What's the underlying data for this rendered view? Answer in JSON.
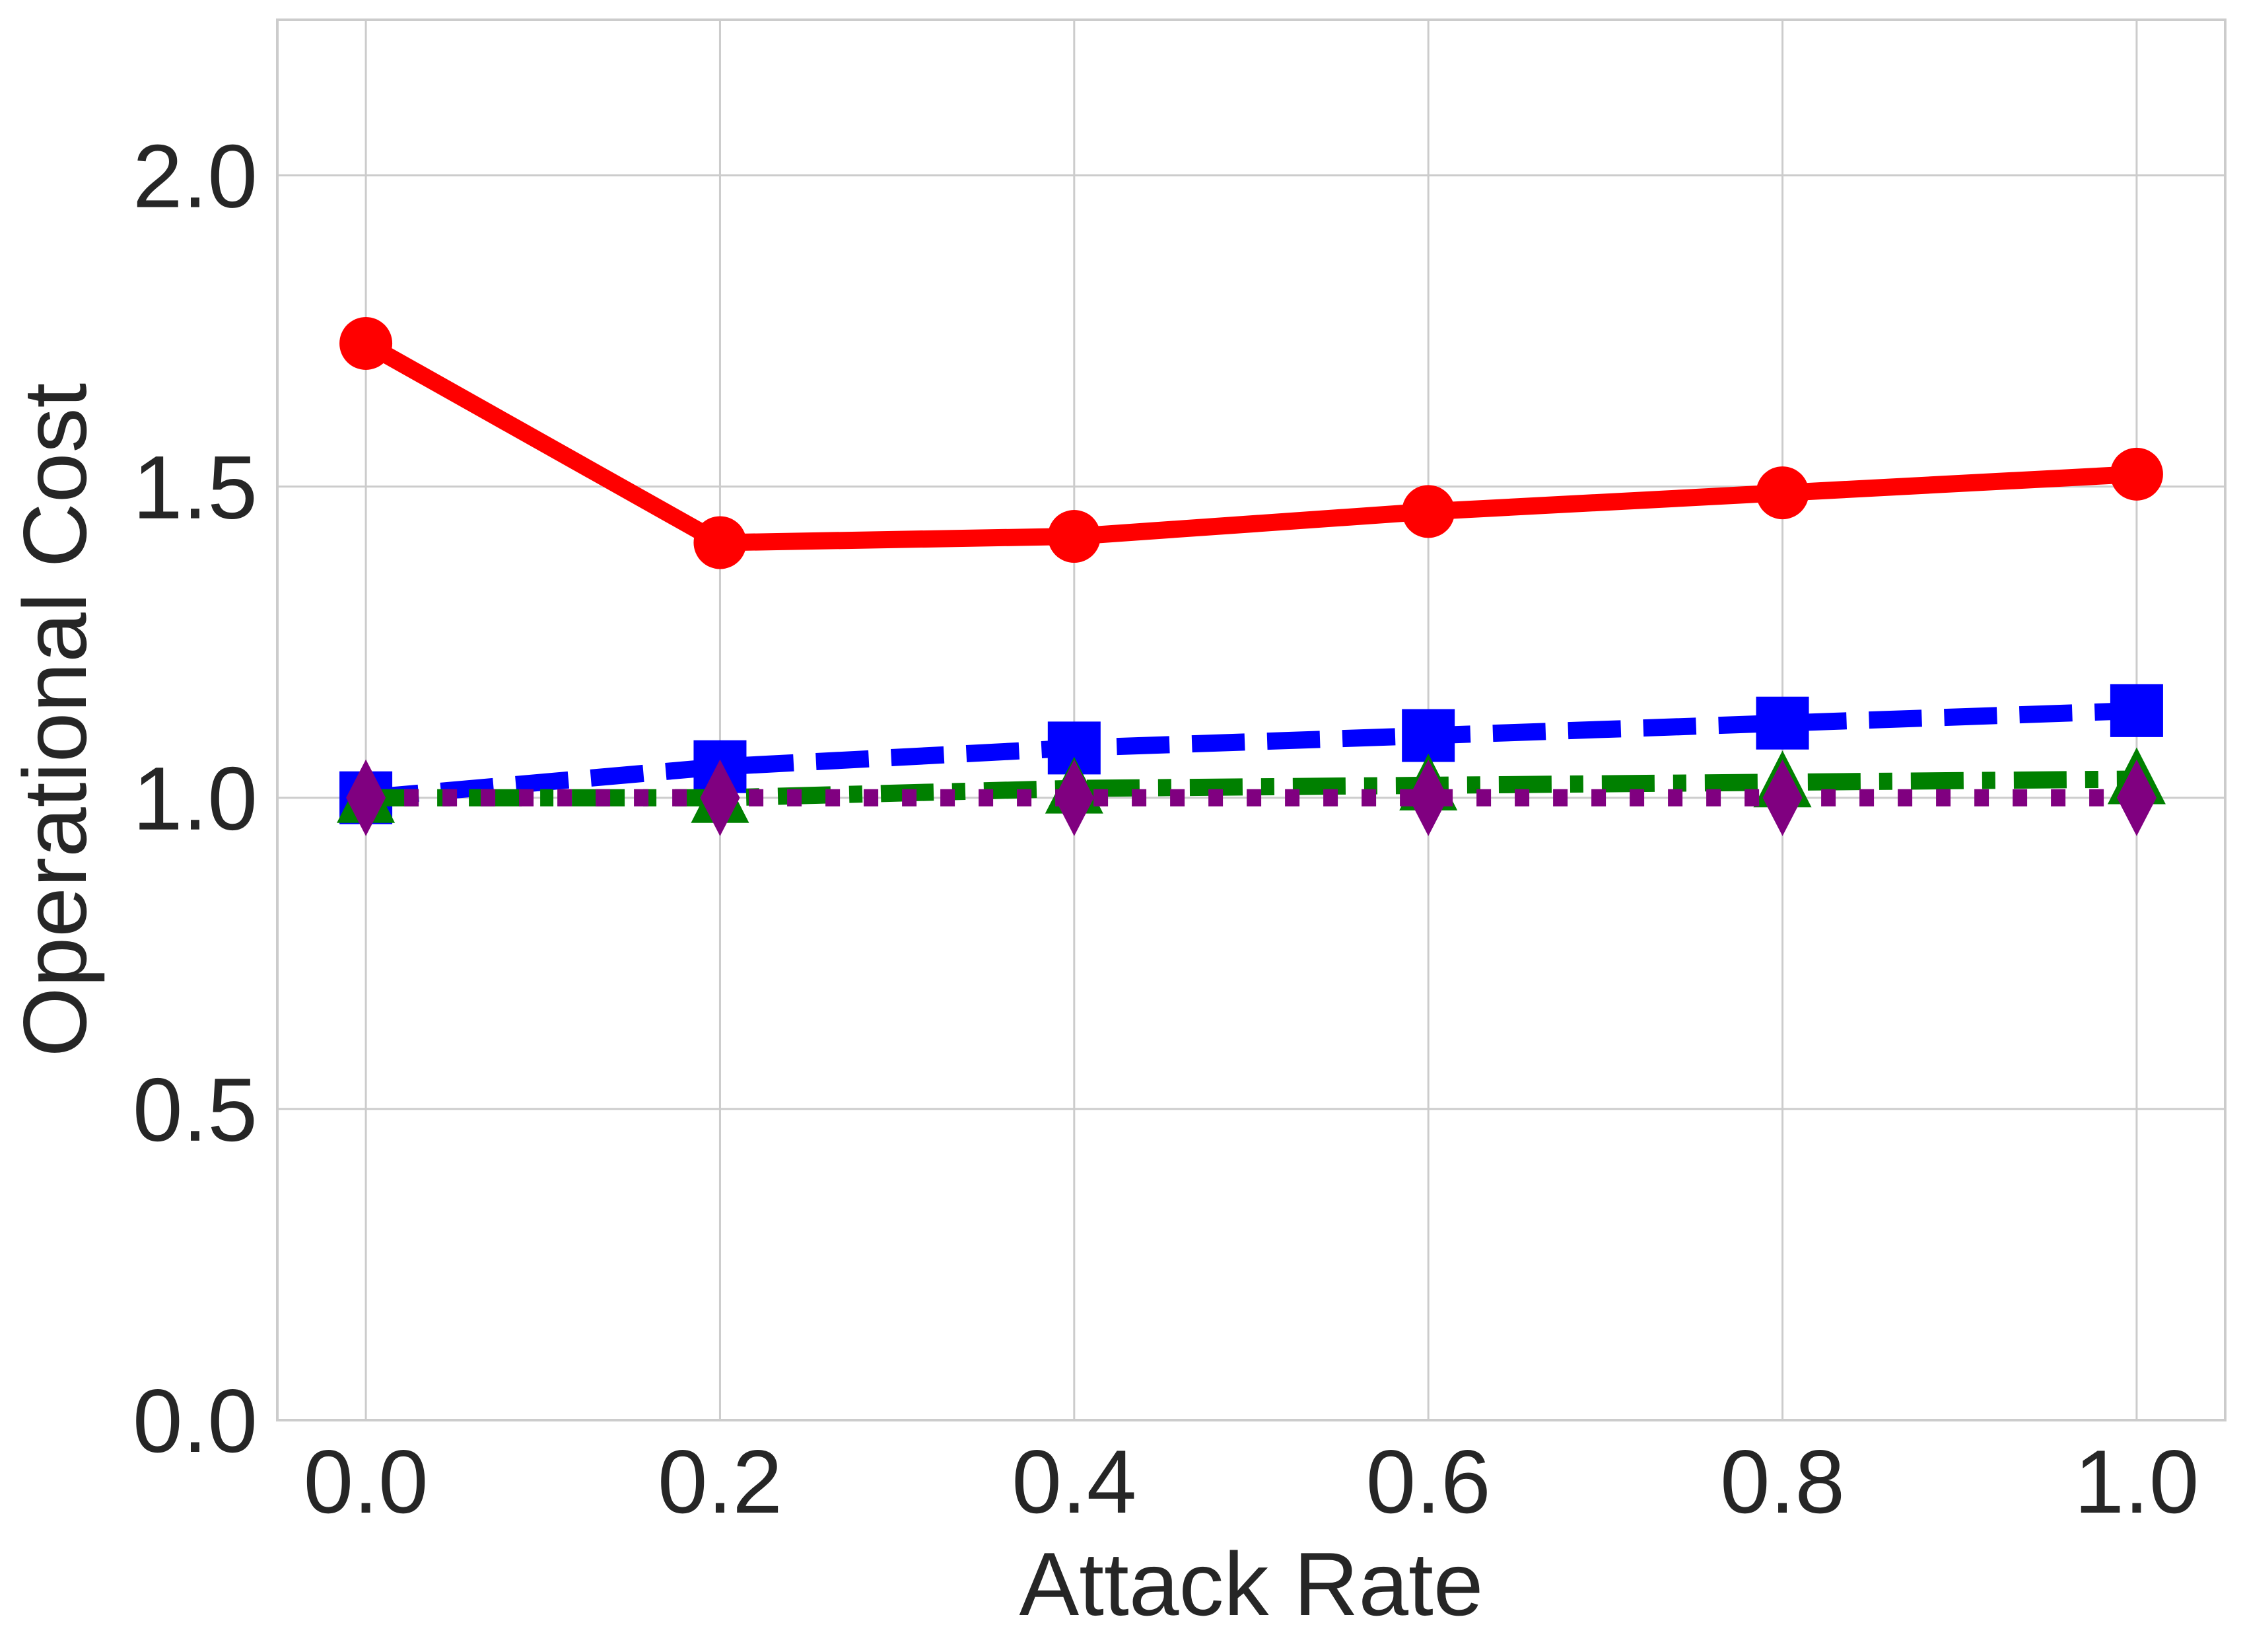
{
  "chart_data": {
    "type": "line",
    "xlabel": "Attack Rate",
    "ylabel": "Operational Cost",
    "x": [
      0.0,
      0.2,
      0.4,
      0.6,
      0.8,
      1.0
    ],
    "xlim": [
      -0.05,
      1.05
    ],
    "ylim": [
      0.0,
      2.25
    ],
    "xticks": [
      "0.0",
      "0.2",
      "0.4",
      "0.6",
      "0.8",
      "1.0"
    ],
    "yticks": [
      "0.0",
      "0.5",
      "1.0",
      "1.5",
      "2.0"
    ],
    "grid": true,
    "series": [
      {
        "color": "#ff0000",
        "line_style": "solid",
        "marker": "circle",
        "values": [
          1.73,
          1.41,
          1.42,
          1.46,
          1.49,
          1.52
        ]
      },
      {
        "color": "#0000ff",
        "line_style": "dashed",
        "marker": "square",
        "values": [
          1.0,
          1.05,
          1.08,
          1.1,
          1.12,
          1.14
        ]
      },
      {
        "color": "#008000",
        "line_style": "dash-dot",
        "marker": "triangle",
        "values": [
          1.0,
          1.0,
          1.015,
          1.02,
          1.025,
          1.03
        ]
      },
      {
        "color": "#800080",
        "line_style": "dotted",
        "marker": "diamond",
        "values": [
          1.0,
          1.0,
          1.0,
          1.0,
          1.0,
          1.0
        ]
      }
    ]
  }
}
